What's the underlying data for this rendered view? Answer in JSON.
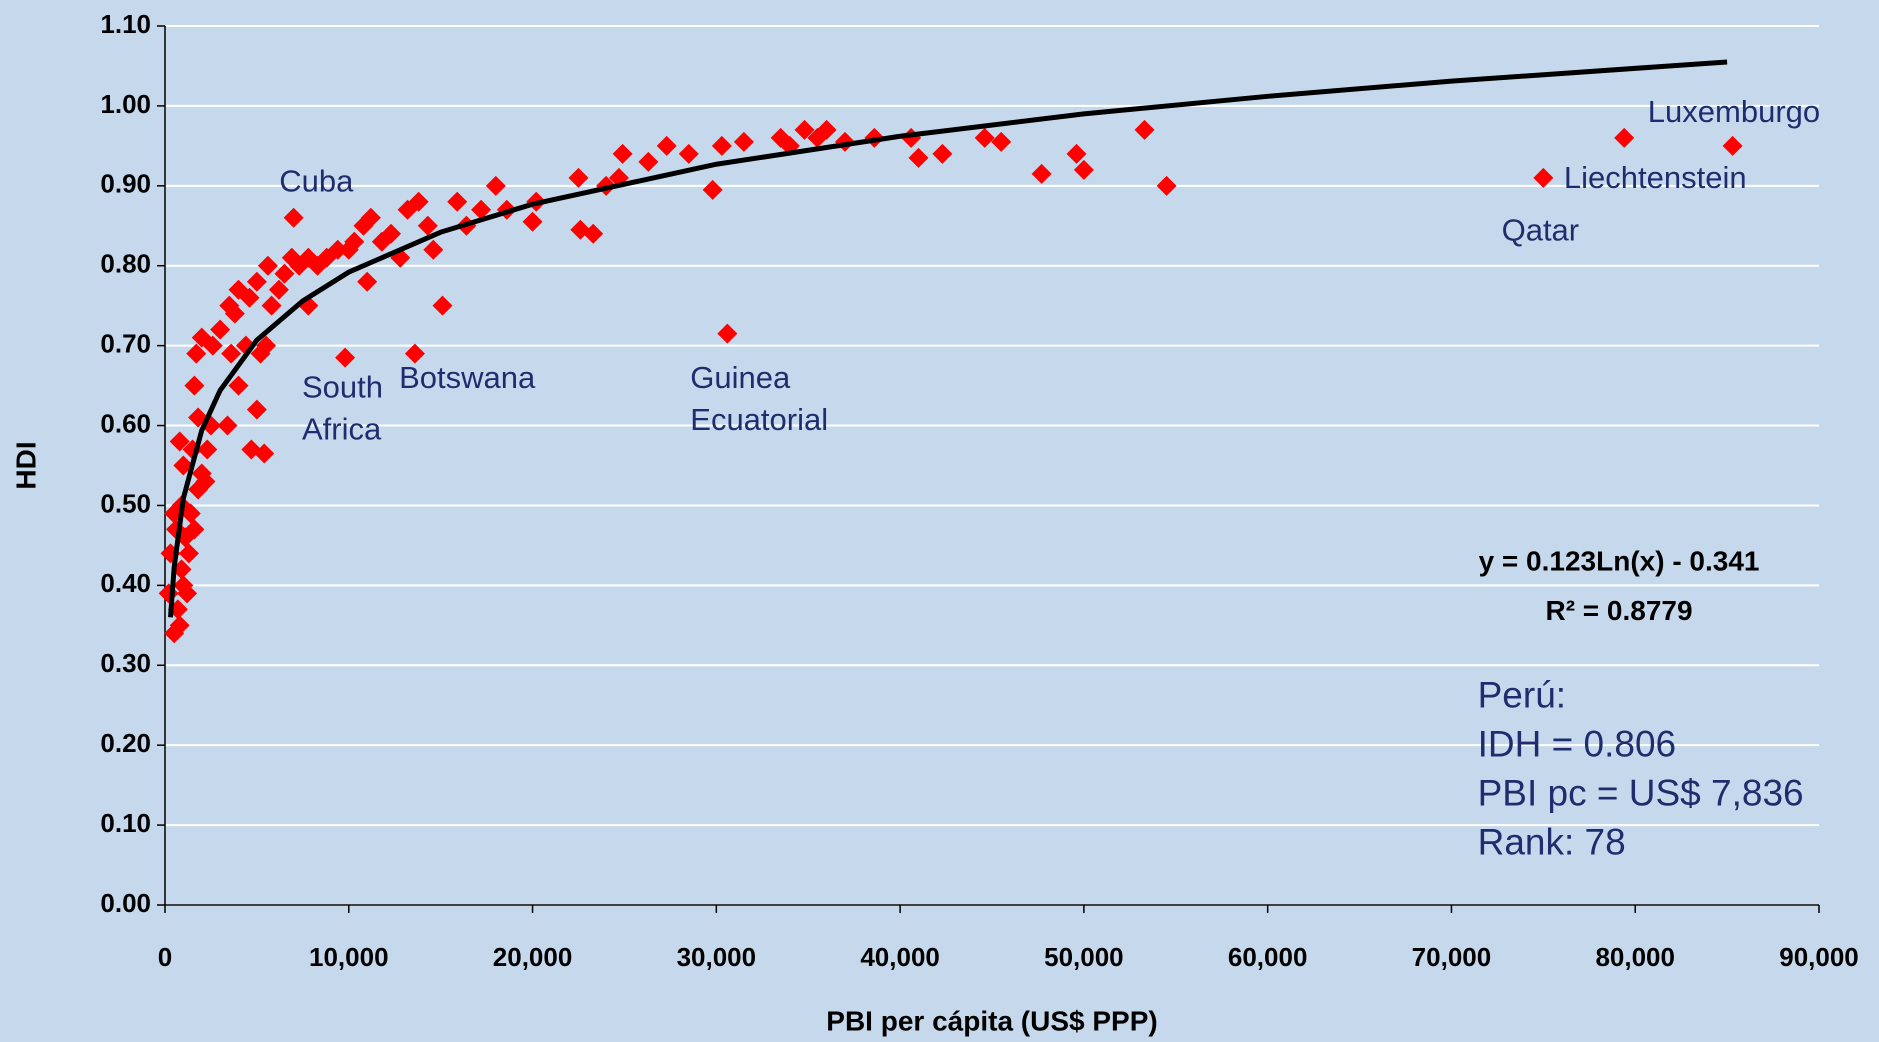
{
  "chart_data": {
    "type": "scatter",
    "x_label": "PBI per cápita (US$ PPP)",
    "y_label": "HDI",
    "xlim": [
      0,
      90000
    ],
    "ylim": [
      0,
      1.1
    ],
    "xticks": [
      0,
      {
        "value": 10000,
        "label": "10,000"
      },
      {
        "value": 20000,
        "label": "20,000"
      },
      {
        "value": 30000,
        "label": "30,000"
      },
      {
        "value": 40000,
        "label": "40,000"
      },
      {
        "value": 50000,
        "label": "50,000"
      },
      {
        "value": 60000,
        "label": "60,000"
      },
      {
        "value": 70000,
        "label": "70,000"
      },
      {
        "value": 80000,
        "label": "80,000"
      },
      {
        "value": 90000,
        "label": "90,000"
      }
    ],
    "yticks": [
      {
        "value": 0,
        "label": "0.00"
      },
      {
        "value": 0.1,
        "label": "0.10"
      },
      {
        "value": 0.2,
        "label": "0.20"
      },
      {
        "value": 0.3,
        "label": "0.30"
      },
      {
        "value": 0.4,
        "label": "0.40"
      },
      {
        "value": 0.5,
        "label": "0.50"
      },
      {
        "value": 0.6,
        "label": "0.60"
      },
      {
        "value": 0.7,
        "label": "0.70"
      },
      {
        "value": 0.8,
        "label": "0.80"
      },
      {
        "value": 0.9,
        "label": "0.90"
      },
      {
        "value": 1.0,
        "label": "1.00"
      },
      {
        "value": 1.1,
        "label": "1.10"
      }
    ],
    "grid": true,
    "color": "#ff0000",
    "x": [
      300,
      200,
      500,
      800,
      700,
      1000,
      1200,
      900,
      1300,
      600,
      1100,
      1600,
      500,
      900,
      1400,
      1800,
      2200,
      2000,
      1000,
      800,
      1500,
      2300,
      1800,
      2500,
      3400,
      1600,
      4000,
      5000,
      4700,
      5400,
      1700,
      2000,
      2600,
      3000,
      3600,
      3800,
      4400,
      5200,
      5500,
      3500,
      4000,
      4600,
      5000,
      5800,
      6200,
      5600,
      6500,
      6900,
      7300,
      7800,
      7000,
      7800,
      8300,
      8800,
      9400,
      10000,
      10300,
      10800,
      11000,
      11200,
      11800,
      12300,
      12800,
      13200,
      13800,
      14300,
      14600,
      15100,
      9800,
      13600,
      15900,
      16400,
      17200,
      18000,
      18600,
      20200,
      20000,
      22500,
      22600,
      23300,
      24000,
      24900,
      24700,
      26300,
      27300,
      28500,
      29800,
      30300,
      31500,
      30600,
      33500,
      34000,
      34800,
      35500,
      36000,
      37000,
      38600,
      40600,
      41000,
      42300,
      44600,
      45500,
      47700,
      49600,
      50000,
      53300,
      54500,
      75000,
      79400,
      85300
    ],
    "values": [
      0.44,
      0.39,
      0.34,
      0.35,
      0.37,
      0.4,
      0.39,
      0.42,
      0.44,
      0.47,
      0.46,
      0.47,
      0.49,
      0.5,
      0.49,
      0.52,
      0.53,
      0.54,
      0.55,
      0.58,
      0.57,
      0.57,
      0.61,
      0.6,
      0.6,
      0.65,
      0.65,
      0.62,
      0.57,
      0.565,
      0.69,
      0.71,
      0.7,
      0.72,
      0.69,
      0.74,
      0.7,
      0.69,
      0.7,
      0.75,
      0.77,
      0.76,
      0.78,
      0.75,
      0.77,
      0.8,
      0.79,
      0.81,
      0.8,
      0.81,
      0.86,
      0.75,
      0.8,
      0.81,
      0.82,
      0.82,
      0.83,
      0.85,
      0.78,
      0.86,
      0.83,
      0.84,
      0.81,
      0.87,
      0.88,
      0.85,
      0.82,
      0.75,
      0.685,
      0.69,
      0.88,
      0.85,
      0.87,
      0.9,
      0.87,
      0.88,
      0.855,
      0.91,
      0.845,
      0.84,
      0.9,
      0.94,
      0.91,
      0.93,
      0.95,
      0.94,
      0.895,
      0.95,
      0.955,
      0.715,
      0.96,
      0.95,
      0.97,
      0.96,
      0.97,
      0.955,
      0.96,
      0.96,
      0.935,
      0.94,
      0.96,
      0.955,
      0.915,
      0.94,
      0.92,
      0.97,
      0.9,
      0.91,
      0.96,
      0.95
    ],
    "trendline": {
      "color": "#000000",
      "x": [
        300,
        500,
        1000,
        2000,
        3000,
        5000,
        7500,
        10000,
        15000,
        20000,
        30000,
        40000,
        50000,
        60000,
        70000,
        85000
      ],
      "values": [
        0.36,
        0.423,
        0.509,
        0.594,
        0.644,
        0.707,
        0.756,
        0.792,
        0.842,
        0.877,
        0.927,
        0.962,
        0.99,
        1.012,
        1.031,
        1.055
      ]
    },
    "annotations": [
      [
        "Cuba"
      ],
      [
        "South",
        "Africa"
      ],
      [
        "Botswana"
      ],
      [
        "Guinea",
        "Ecuatorial"
      ],
      [
        "Luxemburgo"
      ],
      [
        "Liechtenstein"
      ],
      [
        "Qatar"
      ]
    ],
    "equation": [
      "y = 0.123Ln(x) - 0.341",
      "R² = 0.8779"
    ],
    "note": [
      "Perú:",
      "IDH = 0.806",
      "PBI pc = US$ 7,836",
      "Rank: 78"
    ]
  }
}
